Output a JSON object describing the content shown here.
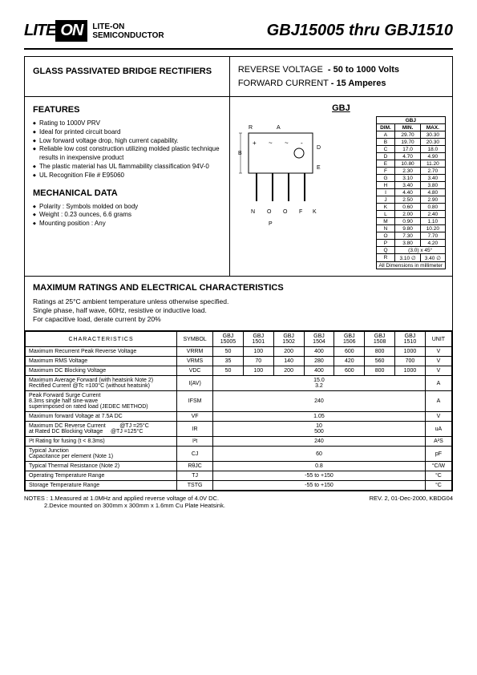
{
  "header": {
    "logo_text": "LITE",
    "logo_box": "ON",
    "logo_sub1": "LITE-ON",
    "logo_sub2": "SEMICONDUCTOR",
    "part_title": "GBJ15005 thru GBJ1510"
  },
  "top": {
    "left_title": "GLASS PASSIVATED BRIDGE RECTIFIERS",
    "rv_label": "REVERSE VOLTAGE",
    "rv_val": "- 50 to 1000 Volts",
    "fc_label": "FORWARD CURRENT",
    "fc_val": "- 15 Amperes"
  },
  "features": {
    "title": "FEATURES",
    "items": [
      "Rating to 1000V PRV",
      "Ideal for printed circuit board",
      "Low forward voltage drop, high current capability.",
      "Reliable low cost construction utilizing molded plastic technique results in inexpensive product",
      "The plastic material has UL flammability classification 94V-0",
      "UL Recognition File # E95060"
    ]
  },
  "mech": {
    "title": "MECHANICAL DATA",
    "items": [
      "Polarity : Symbols molded on body",
      "Weight : 0.23 ounces, 6.6 grams",
      "Mounting position : Any"
    ]
  },
  "pkg": {
    "label": "GBJ",
    "head": {
      "dim": "DIM.",
      "min": "MIN.",
      "max": "MAX.",
      "title": "GBJ"
    },
    "rows": [
      [
        "A",
        "29.70",
        "30.30"
      ],
      [
        "B",
        "19.70",
        "20.30"
      ],
      [
        "C",
        "17.0",
        "18.0"
      ],
      [
        "D",
        "4.70",
        "4.90"
      ],
      [
        "E",
        "10.80",
        "11.20"
      ],
      [
        "F",
        "2.30",
        "2.70"
      ],
      [
        "G",
        "3.10",
        "3.40"
      ],
      [
        "H",
        "3.40",
        "3.80"
      ],
      [
        "I",
        "4.40",
        "4.80"
      ],
      [
        "J",
        "2.50",
        "2.90"
      ],
      [
        "K",
        "0.60",
        "0.80"
      ],
      [
        "L",
        "2.00",
        "2.40"
      ],
      [
        "M",
        "0.90",
        "1.10"
      ],
      [
        "N",
        "9.80",
        "10.20"
      ],
      [
        "O",
        "7.30",
        "7.70"
      ],
      [
        "P",
        "3.80",
        "4.20"
      ]
    ],
    "q_row": [
      "Q",
      "(3.0) x 45°"
    ],
    "r_row": [
      "R",
      "3.10 ∅",
      "3.40 ∅"
    ],
    "foot": "All Dimensions in millimeter"
  },
  "max": {
    "title": "MAXIMUM RATINGS AND ELECTRICAL CHARACTERISTICS",
    "l1": "Ratings at 25°C ambient temperature unless otherwise specified.",
    "l2": "Single phase, half wave, 60Hz, resistive or inductive load.",
    "l3": "For capacitive load, derate current by 20%"
  },
  "chars": {
    "head": {
      "char": "CHARACTERISTICS",
      "sym": "SYMBOL",
      "cols": [
        "GBJ 15005",
        "GBJ 1501",
        "GBJ 1502",
        "GBJ 1504",
        "GBJ 1506",
        "GBJ 1508",
        "GBJ 1510"
      ],
      "unit": "UNIT"
    },
    "rows": [
      {
        "c": "Maximum Recurrent Peak Reverse Voltage",
        "s": "VRRM",
        "v": [
          "50",
          "100",
          "200",
          "400",
          "600",
          "800",
          "1000"
        ],
        "u": "V"
      },
      {
        "c": "Maximum RMS Voltage",
        "s": "VRMS",
        "v": [
          "35",
          "70",
          "140",
          "280",
          "420",
          "560",
          "700"
        ],
        "u": "V"
      },
      {
        "c": "Maximum DC Blocking Voltage",
        "s": "VDC",
        "v": [
          "50",
          "100",
          "200",
          "400",
          "600",
          "800",
          "1000"
        ],
        "u": "V"
      }
    ],
    "avg": {
      "c": "Maximum Average Forward (with heatsink Note 2)\nRectified Current @Tc =100°C (without heatsink)",
      "s": "I(AV)",
      "v1": "15.0",
      "v2": "3.2",
      "u": "A"
    },
    "ifsm": {
      "c": "Peak Forward Surge Current\n8.3ms single half sine-wave\nsuperimposed on rated load (JEDEC METHOD)",
      "s": "IFSM",
      "v": "240",
      "u": "A"
    },
    "vf": {
      "c": "Maximum forward Voltage at 7.5A DC",
      "s": "VF",
      "v": "1.05",
      "u": "V"
    },
    "ir": {
      "c": "Maximum DC Reverse Current\nat Rated DC Blocking Voltage",
      "c2a": "@TJ =25°C",
      "c2b": "@TJ =125°C",
      "s": "IR",
      "v1": "10",
      "v2": "500",
      "u": "uA"
    },
    "i2t": {
      "c": "I²t Rating for fusing (t < 8.3ms)",
      "s": "I²t",
      "v": "240",
      "u": "A²S"
    },
    "cj": {
      "c": "Typical Junction\nCapacitance per element (Note 1)",
      "s": "CJ",
      "v": "60",
      "u": "pF"
    },
    "rth": {
      "c": "Typical Thermal Resistance (Note 2)",
      "s": "RθJC",
      "v": "0.8",
      "u": "°C/W"
    },
    "tj": {
      "c": "Operating Temperature Range",
      "s": "TJ",
      "v": "-55 to +150",
      "u": "°C"
    },
    "tstg": {
      "c": "Storage Temperature Range",
      "s": "TSTG",
      "v": "-55 to +150",
      "u": "°C"
    }
  },
  "footer": {
    "notes": "NOTES : 1.Measured at 1.0MHz and applied reverse voltage of 4.0V DC.\n            2.Device mounted on 300mm x 300mm x 1.6mm Cu Plate Heatsink.",
    "rev": "REV. 2, 01-Dec-2000, KBDG04"
  }
}
